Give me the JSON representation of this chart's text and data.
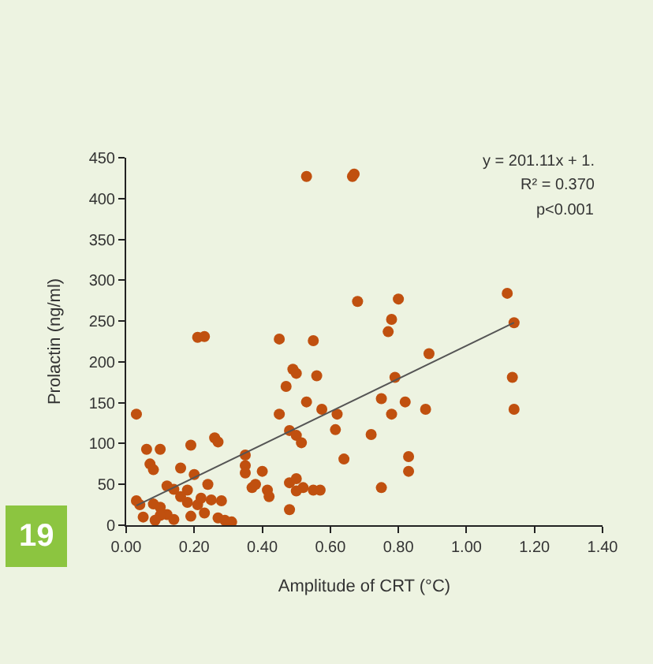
{
  "chart_data": {
    "type": "scatter",
    "xlabel": "Amplitude of CRT (°C)",
    "ylabel": "Prolactin (ng/ml)",
    "xlim": [
      0,
      1.4
    ],
    "xticks": [
      {
        "value": 0,
        "label": "0.00"
      },
      {
        "value": 0.2,
        "label": "0.20"
      },
      {
        "value": 0.4,
        "label": "0.40"
      },
      {
        "value": 0.6,
        "label": "0.60"
      },
      {
        "value": 0.8,
        "label": "0.80"
      },
      {
        "value": 1.0,
        "label": "1.00"
      },
      {
        "value": 1.2,
        "label": "1.20"
      },
      {
        "value": 1.4,
        "label": "1.40"
      }
    ],
    "ylim": [
      0,
      450
    ],
    "yticks": [
      0,
      50,
      100,
      150,
      200,
      250,
      300,
      350,
      400,
      450
    ],
    "grid": false,
    "marker": "circle",
    "annotations": [
      "y = 201.11x + 1.",
      "R² = 0.370",
      "p<0.001",
      "19"
    ],
    "series": [
      {
        "color": "#c0500f",
        "x": [
          0.53,
          0.21,
          0.23,
          0.45,
          0.55,
          0.49,
          0.5,
          0.56,
          0.665,
          0.67,
          0.68,
          0.8,
          1.12,
          1.14,
          0.78,
          0.77,
          0.89,
          0.79,
          1.135,
          1.14,
          0.75,
          0.82,
          0.575,
          0.62,
          0.78,
          0.88,
          0.615,
          0.72,
          0.64,
          0.83,
          0.83,
          0.75,
          0.57,
          0.03,
          0.06,
          0.1,
          0.19,
          0.07,
          0.08,
          0.16,
          0.2,
          0.26,
          0.27,
          0.24,
          0.12,
          0.14,
          0.18,
          0.03,
          0.04,
          0.08,
          0.1,
          0.12,
          0.1,
          0.05,
          0.085,
          0.14,
          0.18,
          0.21,
          0.23,
          0.19,
          0.25,
          0.28,
          0.27,
          0.29,
          0.31,
          0.16,
          0.22,
          0.35,
          0.35,
          0.35,
          0.4,
          0.37,
          0.38,
          0.415,
          0.42,
          0.45,
          0.47,
          0.48,
          0.5,
          0.515,
          0.53,
          0.48,
          0.5,
          0.52,
          0.55,
          0.48,
          0.5
        ],
        "values": [
          427,
          230,
          231,
          228,
          226,
          191,
          186,
          183,
          427,
          430,
          274,
          277,
          284,
          248,
          252,
          237,
          210,
          181,
          181,
          142,
          155,
          151,
          142,
          136,
          136,
          142,
          117,
          111,
          81,
          84,
          66,
          46,
          43,
          136,
          93,
          93,
          98,
          75,
          68,
          70,
          62,
          107,
          102,
          50,
          48,
          44,
          43,
          30,
          25,
          26,
          22,
          13,
          12,
          10,
          6,
          7,
          28,
          25,
          15,
          11,
          31,
          30,
          9,
          6,
          4,
          35,
          33,
          86,
          73,
          64,
          66,
          46,
          50,
          43,
          35,
          136,
          170,
          116,
          110,
          101,
          151,
          52,
          57,
          46,
          43,
          19,
          42
        ]
      },
      {
        "type": "line",
        "color": "#555555",
        "x": [
          0.03,
          1.14
        ],
        "values": [
          24,
          248
        ],
        "marker": "none"
      }
    ]
  }
}
